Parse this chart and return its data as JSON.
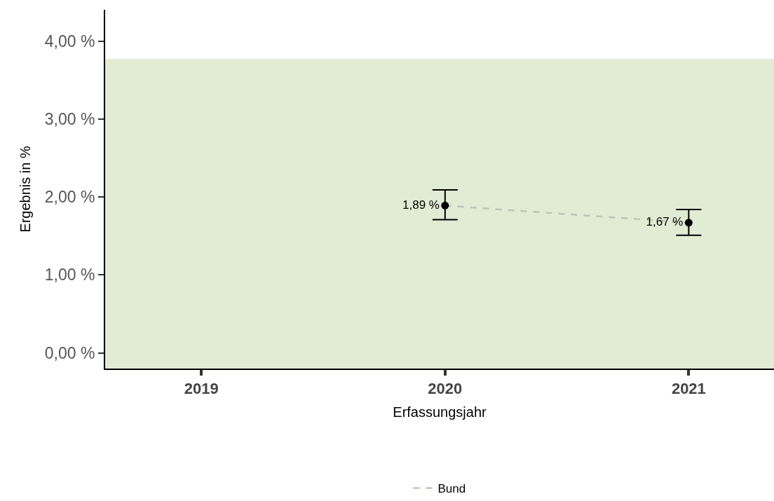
{
  "chart_data": {
    "type": "line",
    "xlabel": "Erfassungsjahr",
    "ylabel": "Ergebnis in %",
    "categories": [
      "2019",
      "2020",
      "2021"
    ],
    "series": [
      {
        "name": "Bund",
        "color": "#bfc4b8",
        "line_style": "dashed",
        "marker": "none",
        "values": [
          null,
          1.89,
          1.67
        ]
      },
      {
        "type": "scatter",
        "color": "#000000",
        "marker": "circle",
        "values": [
          null,
          1.89,
          1.67
        ],
        "errors": [
          null,
          [
            1.71,
            2.09
          ],
          [
            1.51,
            1.84
          ]
        ],
        "value_labels": [
          null,
          "1,89 %",
          "1,67 %"
        ]
      }
    ],
    "ylim": [
      -0.2,
      4.4
    ],
    "yticks": [
      {
        "value": 0,
        "label": "0,00 %"
      },
      {
        "value": 1,
        "label": "1,00 %"
      },
      {
        "value": 2,
        "label": "2,00 %"
      },
      {
        "value": 3,
        "label": "3,00 %"
      },
      {
        "value": 4,
        "label": "4,00 %"
      }
    ],
    "bands": [
      {
        "axis": "y",
        "from": -0.2,
        "to": 3.77,
        "color": "#e2ebd3"
      }
    ],
    "grid": false,
    "legend": "bottom"
  }
}
